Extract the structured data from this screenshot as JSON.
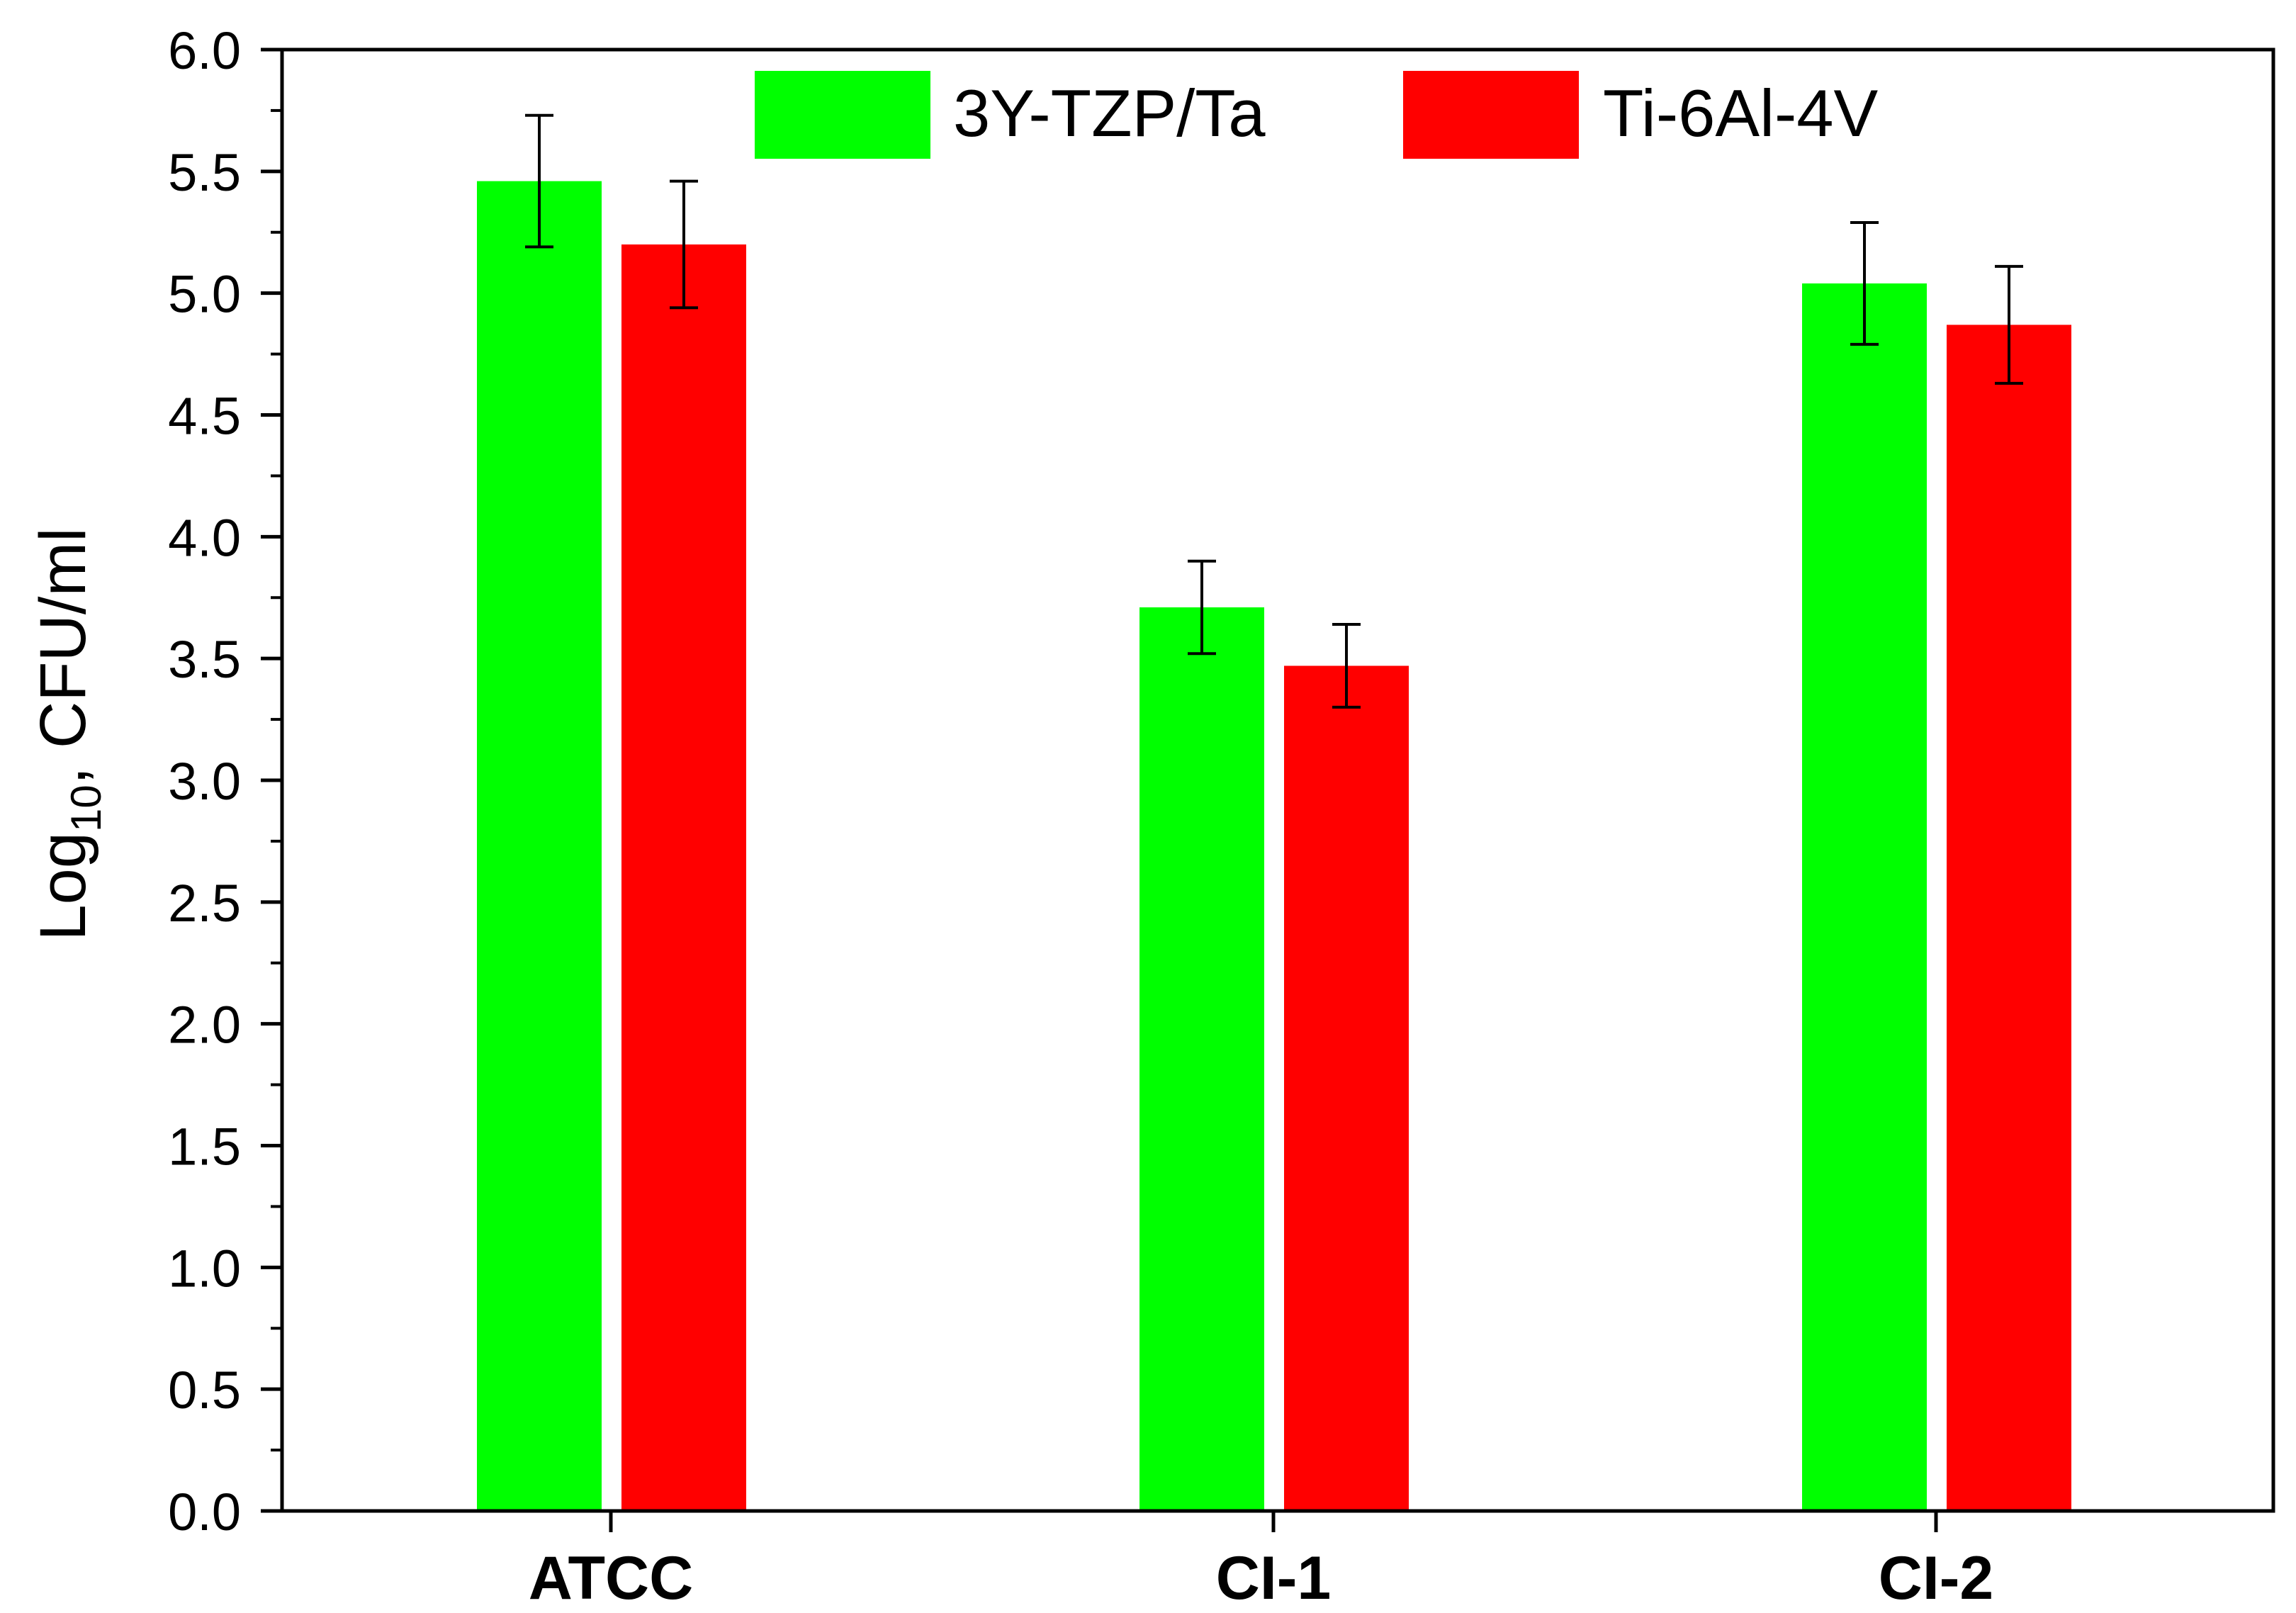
{
  "chart_data": {
    "type": "bar",
    "title": "",
    "xlabel": "",
    "ylabel": {
      "base": "Log",
      "subscript": "10",
      "suffix": ",  CFU/ml"
    },
    "categories": [
      "ATCC",
      "CI-1",
      "CI-2"
    ],
    "ylim": [
      0,
      6
    ],
    "ytick_step": 0.5,
    "ytick_labels": [
      "0.0",
      "0.5",
      "1.0",
      "1.5",
      "2.0",
      "2.5",
      "3.0",
      "3.5",
      "4.0",
      "4.5",
      "5.0",
      "5.5",
      "6.0"
    ],
    "grid": false,
    "legend": {
      "position": "top-center",
      "entries": [
        "3Y-TZP/Ta",
        "Ti-6Al-4V"
      ]
    },
    "series": [
      {
        "name": "3Y-TZP/Ta",
        "color": "#00ff00",
        "values": [
          5.46,
          3.71,
          5.04
        ],
        "errors": [
          0.27,
          0.19,
          0.25
        ]
      },
      {
        "name": "Ti-6Al-4V",
        "color": "#ff0000",
        "values": [
          5.2,
          3.47,
          4.87
        ],
        "errors": [
          0.26,
          0.17,
          0.24
        ]
      }
    ]
  }
}
